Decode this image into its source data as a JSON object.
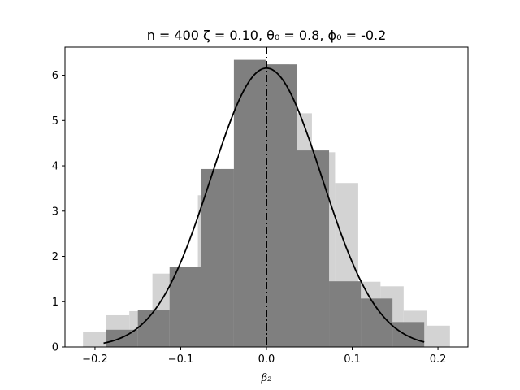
{
  "chart_data": {
    "type": "bar",
    "title": "n = 400 ζ = 0.10,  θ₀ = 0.8, ϕ₀ = -0.2",
    "xlabel": "β₂",
    "ylabel": "",
    "xlim": [
      -0.235,
      0.235
    ],
    "ylim": [
      0,
      6.62
    ],
    "xticks": [
      -0.2,
      -0.1,
      0.0,
      0.1,
      0.2
    ],
    "xtick_labels": [
      "−0.2",
      "−0.1",
      "0.0",
      "0.1",
      "0.2"
    ],
    "yticks": [
      0,
      1,
      2,
      3,
      4,
      5,
      6
    ],
    "ytick_labels": [
      "0",
      "1",
      "2",
      "3",
      "4",
      "5",
      "6"
    ],
    "grid": false,
    "series": [
      {
        "role": "histogram-light",
        "color": "#d3d3d3",
        "bins": [
          {
            "x0": -0.214,
            "x1": -0.187,
            "value": 0.34
          },
          {
            "x0": -0.187,
            "x1": -0.16,
            "value": 0.7
          },
          {
            "x0": -0.16,
            "x1": -0.133,
            "value": 0.79
          },
          {
            "x0": -0.133,
            "x1": -0.107,
            "value": 1.62
          },
          {
            "x0": -0.107,
            "x1": -0.08,
            "value": 1.74
          },
          {
            "x0": -0.08,
            "x1": -0.053,
            "value": 3.35
          },
          {
            "x0": -0.053,
            "x1": -0.027,
            "value": 3.93
          },
          {
            "x0": -0.027,
            "x1": 0.0,
            "value": 5.82
          },
          {
            "x0": 0.0,
            "x1": 0.027,
            "value": 6.24
          },
          {
            "x0": 0.027,
            "x1": 0.053,
            "value": 5.16
          },
          {
            "x0": 0.053,
            "x1": 0.08,
            "value": 4.3
          },
          {
            "x0": 0.08,
            "x1": 0.107,
            "value": 3.62
          },
          {
            "x0": 0.107,
            "x1": 0.133,
            "value": 1.44
          },
          {
            "x0": 0.133,
            "x1": 0.16,
            "value": 1.34
          },
          {
            "x0": 0.16,
            "x1": 0.187,
            "value": 0.8
          },
          {
            "x0": 0.187,
            "x1": 0.214,
            "value": 0.47
          }
        ]
      },
      {
        "role": "histogram-dark",
        "color": "#7f7f7f",
        "bins": [
          {
            "x0": -0.187,
            "x1": -0.15,
            "value": 0.38
          },
          {
            "x0": -0.15,
            "x1": -0.113,
            "value": 0.82
          },
          {
            "x0": -0.113,
            "x1": -0.076,
            "value": 1.76
          },
          {
            "x0": -0.076,
            "x1": -0.038,
            "value": 3.93
          },
          {
            "x0": -0.038,
            "x1": -0.001,
            "value": 6.34
          },
          {
            "x0": -0.001,
            "x1": 0.036,
            "value": 6.24
          },
          {
            "x0": 0.036,
            "x1": 0.073,
            "value": 4.34
          },
          {
            "x0": 0.073,
            "x1": 0.11,
            "value": 1.45
          },
          {
            "x0": 0.11,
            "x1": 0.147,
            "value": 1.07
          },
          {
            "x0": 0.147,
            "x1": 0.184,
            "value": 0.55
          }
        ]
      },
      {
        "role": "normal-density-curve",
        "type": "line",
        "color": "#000000",
        "mean": 0.0,
        "sd": 0.0648,
        "x_range": [
          -0.19,
          0.184
        ]
      },
      {
        "role": "reference-line",
        "type": "vline",
        "color": "#000000",
        "x": 0.0,
        "style": "dash-dot"
      }
    ]
  }
}
